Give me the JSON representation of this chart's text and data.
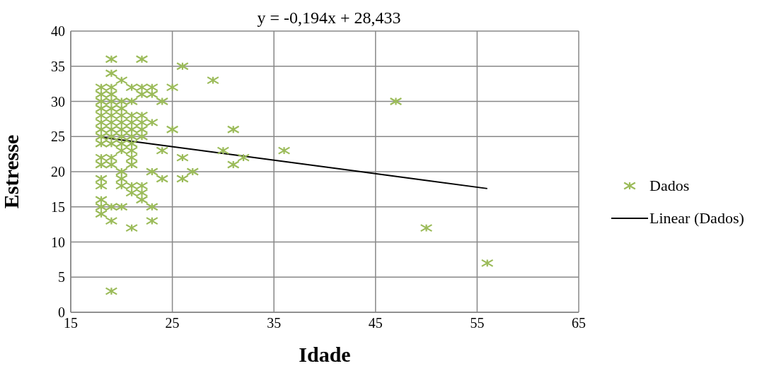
{
  "chart_data": {
    "type": "scatter",
    "title": "y = -0,194x + 28,433",
    "xlabel": "Idade",
    "ylabel": "Estresse",
    "xlim": [
      15,
      65
    ],
    "xticks": [
      15,
      25,
      35,
      45,
      55,
      65
    ],
    "ylim": [
      0,
      40
    ],
    "yticks": [
      0,
      5,
      10,
      15,
      20,
      25,
      30,
      35,
      40
    ],
    "grid": true,
    "legend": "right",
    "series": [
      {
        "name": "Dados",
        "marker": "cross",
        "color": "#9bbb59",
        "x": [
          18,
          18,
          18,
          18,
          18,
          18,
          18,
          18,
          18,
          18,
          18,
          18,
          18,
          18,
          18,
          18,
          19,
          19,
          19,
          19,
          19,
          19,
          19,
          19,
          19,
          19,
          19,
          19,
          19,
          19,
          19,
          19,
          20,
          20,
          20,
          20,
          20,
          20,
          20,
          20,
          20,
          20,
          20,
          20,
          20,
          21,
          21,
          21,
          21,
          21,
          21,
          21,
          21,
          21,
          21,
          21,
          21,
          21,
          22,
          22,
          22,
          22,
          22,
          22,
          22,
          22,
          22,
          22,
          23,
          23,
          23,
          23,
          23,
          23,
          24,
          24,
          24,
          25,
          25,
          26,
          26,
          26,
          27,
          29,
          30,
          31,
          31,
          32,
          36,
          47,
          50,
          56
        ],
        "values": [
          14,
          15,
          16,
          18,
          19,
          21,
          22,
          24,
          25,
          26,
          27,
          28,
          29,
          30,
          31,
          32,
          3,
          13,
          15,
          21,
          22,
          24,
          25,
          26,
          27,
          28,
          29,
          30,
          31,
          32,
          34,
          36,
          15,
          18,
          19,
          20,
          23,
          24,
          25,
          26,
          27,
          28,
          29,
          30,
          33,
          12,
          17,
          18,
          21,
          22,
          23,
          24,
          25,
          26,
          27,
          28,
          30,
          32,
          16,
          17,
          18,
          25,
          26,
          27,
          28,
          31,
          32,
          36,
          13,
          15,
          20,
          27,
          31,
          32,
          19,
          23,
          30,
          26,
          32,
          19,
          22,
          35,
          20,
          33,
          23,
          21,
          26,
          22,
          23,
          30,
          12,
          7
        ]
      },
      {
        "name": "Linear (Dados)",
        "type": "line",
        "line_style": "solid",
        "color": "#000000",
        "x": [
          18,
          56
        ],
        "values": [
          24.9,
          17.6
        ]
      }
    ]
  }
}
